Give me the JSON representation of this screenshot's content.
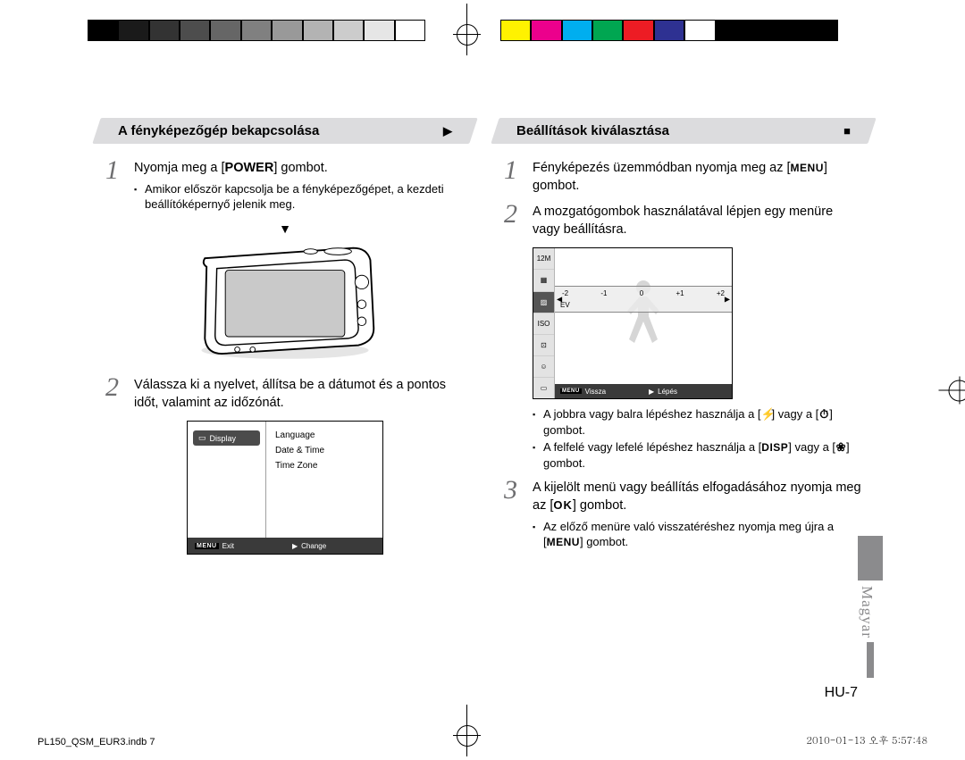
{
  "print": {
    "left_swatches": [
      "#000000",
      "#1a1a1a",
      "#333333",
      "#4d4d4d",
      "#666666",
      "#808080",
      "#999999",
      "#b3b3b3",
      "#cccccc",
      "#e6e6e6",
      "#ffffff"
    ],
    "right_swatches": [
      "#fff200",
      "#ec008c",
      "#00aeef",
      "#00a651",
      "#ed1c24",
      "#2e3192",
      "#ffffff",
      "#000000",
      "#000000",
      "#000000",
      "#000000"
    ]
  },
  "left": {
    "heading": "A fényképezőgép bekapcsolása",
    "heading_glyph": "▶",
    "step1": {
      "text_pre": "Nyomja meg a [",
      "key": "POWER",
      "text_post": "] gombot.",
      "bullet": "Amikor először kapcsolja be a fényképezőgépet, a kezdeti beállítóképernyő jelenik meg."
    },
    "step2": {
      "text": "Válassza ki a nyelvet, állítsa be a dátumot és a pontos időt, valamint az időzónát."
    },
    "display_box": {
      "left_item": "Display",
      "right_items": [
        "Language",
        "Date & Time",
        "Time Zone"
      ],
      "footer_exit": "Exit",
      "footer_change": "Change"
    }
  },
  "right": {
    "heading": "Beállítások kiválasztása",
    "heading_glyph": "■",
    "step1": {
      "text_pre": "Fényképezés üzemmódban nyomja meg az [",
      "text_post": "] gombot."
    },
    "step2": {
      "text": "A mozgatógombok használatával lépjen egy menüre vagy beállításra."
    },
    "ev_box": {
      "icons": [
        "12M",
        "▦",
        "▨",
        "ISO",
        "⊡",
        "☺",
        "▭"
      ],
      "highlight_index": 2,
      "scale": [
        "-2",
        "-1",
        "0",
        "+1",
        "+2"
      ],
      "scale_label": "EV",
      "footer_back": "Vissza",
      "footer_step": "Lépés"
    },
    "bullets": {
      "b1_pre": "A jobbra vagy balra lépéshez használja a [",
      "b1_mid": "] vagy a [",
      "b1_post": "] gombot.",
      "b2_pre": "A felfelé vagy lefelé lépéshez használja a [",
      "b2_mid": "] vagy a [",
      "b2_post": "] gombot."
    },
    "step3": {
      "text_pre": "A kijelölt menü vagy beállítás elfogadásához nyomja meg az [",
      "text_post": "] gombot.",
      "bullet_pre": "Az előző menüre való visszatéréshez nyomja meg újra a [",
      "bullet_post": "] gombot."
    }
  },
  "page_number": "HU-7",
  "side_lang": "Magyar",
  "footer_left": "PL150_QSM_EUR3.indb   7",
  "footer_right": "2010-01-13   오후 5:57:48",
  "labels": {
    "menu": "MENU",
    "ok": "OK",
    "disp": "DISP"
  }
}
